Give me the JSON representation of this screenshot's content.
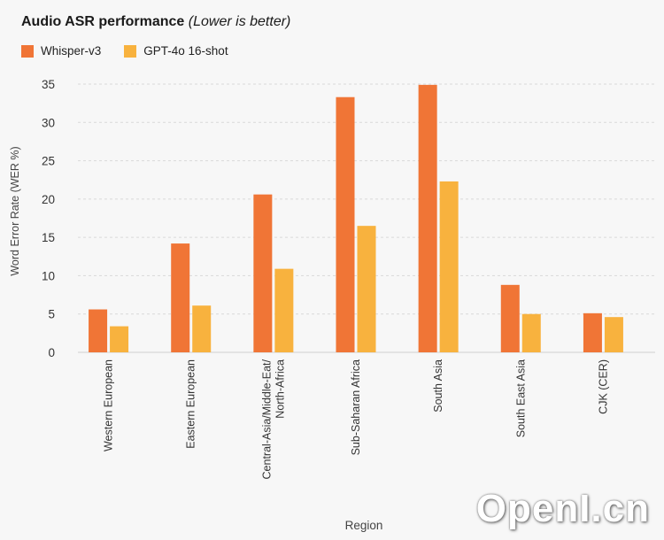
{
  "title": "Audio ASR performance",
  "subtitle": "(Lower is better)",
  "watermark": "OpenI.cn",
  "chart_data": {
    "type": "bar",
    "xlabel": "Region",
    "ylabel": "Word Error Rate (WER %)",
    "ylim": [
      0,
      35
    ],
    "yticks": [
      0,
      5,
      10,
      15,
      20,
      25,
      30,
      35
    ],
    "grid": true,
    "legend": "top-left",
    "categories": [
      "Western European",
      "Eastern European",
      "Central-Asia/Middle-Eat/\nNorth-Africa",
      "Sub-Saharan Africa",
      "South Asia",
      "South East Asia",
      "CJK (CER)"
    ],
    "series": [
      {
        "name": "Whisper-v3",
        "color": "#f07536",
        "values": [
          5.6,
          14.2,
          20.6,
          33.3,
          34.9,
          8.8,
          5.1
        ]
      },
      {
        "name": "GPT-4o 16-shot",
        "color": "#f8b23e",
        "values": [
          3.4,
          6.1,
          10.9,
          16.5,
          22.3,
          5.0,
          4.6
        ]
      }
    ]
  }
}
